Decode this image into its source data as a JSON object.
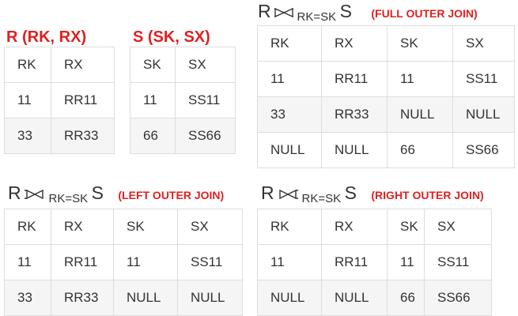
{
  "relation_r": {
    "title": "R (RK, RX)",
    "headers": [
      "RK",
      "RX"
    ],
    "rows": [
      [
        "11",
        "RR11"
      ],
      [
        "33",
        "RR33"
      ]
    ]
  },
  "relation_s": {
    "title": "S (SK, SX)",
    "headers": [
      "SK",
      "SX"
    ],
    "rows": [
      [
        "11",
        "SS11"
      ],
      [
        "66",
        "SS66"
      ]
    ]
  },
  "full_join": {
    "left": "R",
    "condition": "RK=SK",
    "right": "S",
    "label": "(FULL OUTER JOIN)",
    "headers": [
      "RK",
      "RX",
      "SK",
      "SX"
    ],
    "rows": [
      [
        "11",
        "RR11",
        "11",
        "SS11"
      ],
      [
        "33",
        "RR33",
        "NULL",
        "NULL"
      ],
      [
        "NULL",
        "NULL",
        "66",
        "SS66"
      ]
    ]
  },
  "left_join": {
    "left": "R",
    "condition": "RK=SK",
    "right": "S",
    "label": "(LEFT OUTER JOIN)",
    "headers": [
      "RK",
      "RX",
      "SK",
      "SX"
    ],
    "rows": [
      [
        "11",
        "RR11",
        "11",
        "SS11"
      ],
      [
        "33",
        "RR33",
        "NULL",
        "NULL"
      ]
    ]
  },
  "right_join": {
    "left": "R",
    "condition": "RK=SK",
    "right": "S",
    "label": "(RIGHT OUTER JOIN)",
    "headers": [
      "RK",
      "RX",
      "SK",
      "SX"
    ],
    "rows": [
      [
        "11",
        "RR11",
        "11",
        "SS11"
      ],
      [
        "NULL",
        "NULL",
        "66",
        "SS66"
      ]
    ]
  },
  "colors": {
    "accent_red": "#e02020",
    "border": "#dddddd",
    "stripe": "#f5f5f5",
    "text": "#333333"
  },
  "icons": {
    "full_join": "full-outer-join-icon",
    "left_join": "left-outer-join-icon",
    "right_join": "right-outer-join-icon"
  }
}
